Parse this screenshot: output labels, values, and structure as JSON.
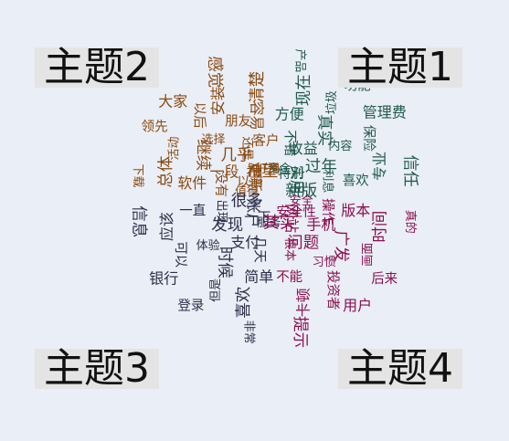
{
  "chart_data": {
    "type": "wordcloud",
    "topics": [
      {
        "name": "主题1",
        "color": "#1f5a4c",
        "words": [
          "资金",
          "不错",
          "方便",
          "现在",
          "产品",
          "特别",
          "收益",
          "真实",
          "垃圾",
          "功能",
          "实用",
          "过年",
          "内容",
          "保险",
          "管理费",
          "新版",
          "利息",
          "喜欢",
          "专业",
          "信任"
        ]
      },
      {
        "name": "主题2",
        "color": "#8a4a12",
        "words": [
          "值得",
          "没有",
          "软件",
          "总体",
          "下载",
          "以前",
          "一段",
          "继续",
          "活动",
          "领先",
          "更新",
          "几乎",
          "选择",
          "以后",
          "大家",
          "希望",
          "还是",
          "朋友",
          "安装",
          "感觉",
          "好用",
          "客户",
          "容易",
          "清楚"
        ]
      },
      {
        "name": "主题3",
        "color": "#2e2e4a",
        "words": [
          "服务",
          "几天",
          "简单",
          "喜欢",
          "非常",
          "一下",
          "支付",
          "时候",
          "但是",
          "登录",
          "账户",
          "发现",
          "体验",
          "可以",
          "银行",
          "很多",
          "出现",
          "一直",
          "应该",
          "信息"
        ]
      },
      {
        "name": "主题4",
        "color": "#8a1050",
        "words": [
          "安全",
          "操作",
          "版本",
          "时间",
          "真的",
          "安全性",
          "手机",
          "广发",
          "画面",
          "后来",
          "网站",
          "问题",
          "习惯",
          "投资者",
          "用户",
          "其实",
          "根本",
          "不能",
          "卡顿",
          "提示"
        ]
      }
    ]
  }
}
